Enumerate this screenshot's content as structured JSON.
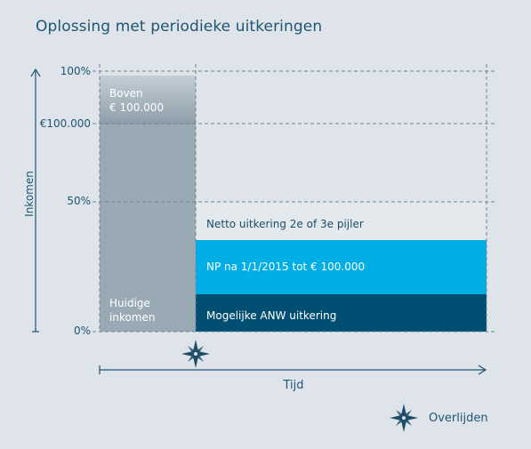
{
  "title": "Oplossing met periodieke uitkeringen",
  "axes": {
    "y_label": "Inkomen",
    "x_label": "Tijd",
    "y_ticks": [
      "100%",
      "€100.000",
      "50%",
      "0%"
    ]
  },
  "blocks": {
    "current_income_label": "Huidige\ninkomen",
    "above_label": "Boven\n€ 100.000",
    "netto_label": "Netto uitkering 2e of 3e pijler",
    "np_label": "NP na 1/1/2015 tot € 100.000",
    "anw_label": "Mogelijke ANW uitkering"
  },
  "legend": {
    "event_label": "Overlijden",
    "event_icon": "compass-star-icon"
  },
  "colors": {
    "background": "#dee4ea",
    "current_income": "#9aaab5",
    "np_block": "#00aee6",
    "anw_block": "#004e72",
    "netto_block": "#e4e9ee",
    "text_blue": "#1d5572"
  }
}
